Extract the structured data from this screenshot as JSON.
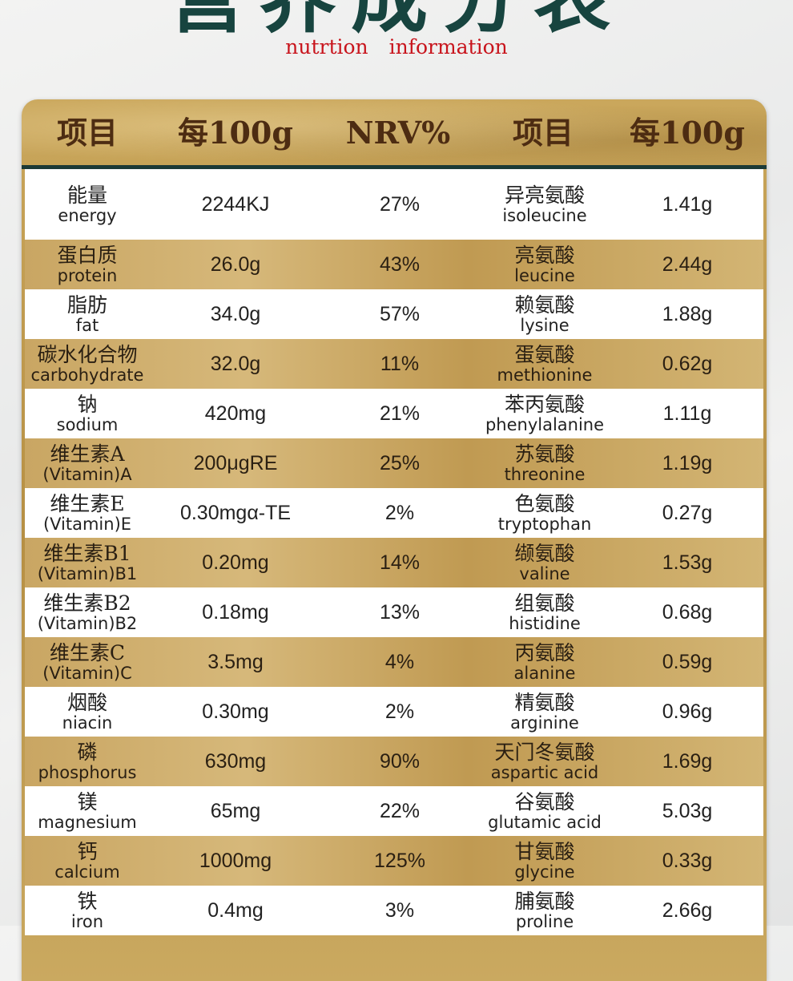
{
  "title": "营养成分表",
  "subtitle": "nutrtion  information",
  "colors": {
    "title": "#17443f",
    "subtitle": "#c8141c",
    "gold": "#c4a15a",
    "rule": "#1c3a36"
  },
  "header": {
    "col1": "项目",
    "col2": "每100g",
    "col3": "NRV%",
    "col4": "项目",
    "col5": "每100g"
  },
  "rows": [
    {
      "zh": "能量",
      "en": "energy",
      "value": "2244KJ",
      "nrv": "27%",
      "aa_zh": "异亮氨酸",
      "aa_en": "isoleucine",
      "aa_value": "1.41g"
    },
    {
      "zh": "蛋白质",
      "en": "protein",
      "value": "26.0g",
      "nrv": "43%",
      "aa_zh": "亮氨酸",
      "aa_en": "leucine",
      "aa_value": "2.44g"
    },
    {
      "zh": "脂肪",
      "en": "fat",
      "value": "34.0g",
      "nrv": "57%",
      "aa_zh": "赖氨酸",
      "aa_en": "lysine",
      "aa_value": "1.88g"
    },
    {
      "zh": "碳水化合物",
      "en": "carbohydrate",
      "value": "32.0g",
      "nrv": "11%",
      "aa_zh": "蛋氨酸",
      "aa_en": "methionine",
      "aa_value": "0.62g"
    },
    {
      "zh": "钠",
      "en": "sodium",
      "value": "420mg",
      "nrv": "21%",
      "aa_zh": "苯丙氨酸",
      "aa_en": "phenylalanine",
      "aa_value": "1.11g"
    },
    {
      "zh": "维生素A",
      "en": "(Vitamin)A",
      "value": "200μgRE",
      "nrv": "25%",
      "aa_zh": "苏氨酸",
      "aa_en": "threonine",
      "aa_value": "1.19g"
    },
    {
      "zh": "维生素E",
      "en": "(Vitamin)E",
      "value": "0.30mgα-TE",
      "nrv": "2%",
      "aa_zh": "色氨酸",
      "aa_en": "tryptophan",
      "aa_value": "0.27g"
    },
    {
      "zh": "维生素B1",
      "en": "(Vitamin)B1",
      "value": "0.20mg",
      "nrv": "14%",
      "aa_zh": "缬氨酸",
      "aa_en": "valine",
      "aa_value": "1.53g"
    },
    {
      "zh": "维生素B2",
      "en": "(Vitamin)B2",
      "value": "0.18mg",
      "nrv": "13%",
      "aa_zh": "组氨酸",
      "aa_en": "histidine",
      "aa_value": "0.68g"
    },
    {
      "zh": "维生素C",
      "en": "(Vitamin)C",
      "value": "3.5mg",
      "nrv": "4%",
      "aa_zh": "丙氨酸",
      "aa_en": "alanine",
      "aa_value": "0.59g"
    },
    {
      "zh": "烟酸",
      "en": "niacin",
      "value": "0.30mg",
      "nrv": "2%",
      "aa_zh": "精氨酸",
      "aa_en": "arginine",
      "aa_value": "0.96g"
    },
    {
      "zh": "磷",
      "en": "phosphorus",
      "value": "630mg",
      "nrv": "90%",
      "aa_zh": "天门冬氨酸",
      "aa_en": "aspartic acid",
      "aa_value": "1.69g"
    },
    {
      "zh": "镁",
      "en": "magnesium",
      "value": "65mg",
      "nrv": "22%",
      "aa_zh": "谷氨酸",
      "aa_en": "glutamic acid",
      "aa_value": "5.03g"
    },
    {
      "zh": "钙",
      "en": "calcium",
      "value": "1000mg",
      "nrv": "125%",
      "aa_zh": "甘氨酸",
      "aa_en": "glycine",
      "aa_value": "0.33g"
    },
    {
      "zh": "铁",
      "en": "iron",
      "value": "0.4mg",
      "nrv": "3%",
      "aa_zh": "脯氨酸",
      "aa_en": "proline",
      "aa_value": "2.66g"
    }
  ]
}
